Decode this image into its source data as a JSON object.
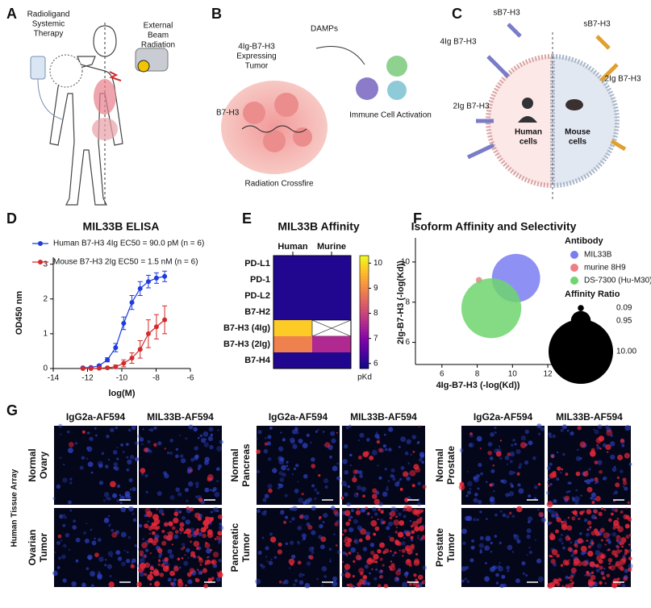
{
  "panel_letters": [
    "A",
    "B",
    "C",
    "D",
    "E",
    "F",
    "G"
  ],
  "panel_a": {
    "labels": [
      {
        "lines": [
          "Radioligand",
          "Systemic",
          "Therapy"
        ]
      },
      {
        "lines": [
          "External",
          "Beam",
          "Radiation"
        ]
      }
    ]
  },
  "panel_b": {
    "labels": [
      {
        "lines": [
          "4Ig-B7-H3",
          "Expressing",
          "Tumor"
        ]
      },
      {
        "lines": [
          "DAMPs"
        ]
      },
      {
        "lines": [
          "B7-H3"
        ]
      },
      {
        "lines": [
          "Immune Cell Activation"
        ]
      },
      {
        "lines": [
          "Radiation Crossfire"
        ]
      }
    ]
  },
  "panel_c": {
    "labels": [
      {
        "lines": [
          "sB7-H3"
        ]
      },
      {
        "lines": [
          "sB7-H3"
        ]
      },
      {
        "lines": [
          "4Ig B7-H3"
        ]
      },
      {
        "lines": [
          "2Ig B7-H3"
        ]
      },
      {
        "lines": [
          "2Ig B7-H3"
        ]
      },
      {
        "lines": [
          "Human",
          "cells"
        ]
      },
      {
        "lines": [
          "Mouse",
          "cells"
        ]
      }
    ]
  },
  "chart_data": [
    {
      "type": "line",
      "title": "MIL33B ELISA",
      "x_label": "log(M)",
      "y_label": "OD450 nm",
      "x": [
        -12.27,
        -11.8,
        -11.32,
        -10.84,
        -10.36,
        -9.89,
        -9.41,
        -8.93,
        -8.45,
        -7.98,
        -7.5
      ],
      "series": [
        {
          "name": "Human B7-H3 4Ig EC50 = 90.0 pM (n = 6)",
          "color": "#1f3be0",
          "values": [
            0.02,
            0.03,
            0.08,
            0.25,
            0.6,
            1.3,
            1.9,
            2.3,
            2.5,
            2.6,
            2.65
          ],
          "errors": [
            0.02,
            0.02,
            0.03,
            0.06,
            0.12,
            0.18,
            0.2,
            0.2,
            0.18,
            0.15,
            0.15
          ]
        },
        {
          "name": "Mouse B7-H3 2Ig EC50 = 1.5 nM (n = 6)",
          "color": "#d42a2a",
          "values": [
            0,
            0,
            0.01,
            0.02,
            0.05,
            0.15,
            0.3,
            0.55,
            1.0,
            1.2,
            1.4
          ],
          "errors": [
            0.01,
            0.01,
            0.01,
            0.02,
            0.05,
            0.1,
            0.15,
            0.25,
            0.4,
            0.35,
            0.4
          ]
        }
      ],
      "xlim": [
        -14,
        -6
      ],
      "xticks": [
        -14,
        -12,
        -10,
        -8,
        -6
      ],
      "ylim": [
        0,
        3.2
      ],
      "yticks": [
        0,
        1,
        2,
        3
      ]
    },
    {
      "type": "heatmap",
      "title": "MIL33B Affinity",
      "columns": [
        "Human",
        "Murine"
      ],
      "rows": [
        "PD-L1",
        "PD-1",
        "PD-L2",
        "B7-H2",
        "B7-H3 (4Ig)",
        "B7-H3 (2Ig)",
        "B7-H4"
      ],
      "values": [
        [
          6,
          6
        ],
        [
          6,
          6
        ],
        [
          6,
          6
        ],
        [
          6,
          6
        ],
        [
          9.8,
          null
        ],
        [
          8.9,
          7.6
        ],
        [
          6,
          6
        ]
      ],
      "zlim": [
        5.8,
        10.3
      ],
      "zticks": [
        6,
        7,
        8,
        9,
        10
      ],
      "colorbar_label": "pKd",
      "colormap": "plasma"
    },
    {
      "type": "bubble",
      "title": "Isoform Affinity and Selectivity",
      "x_label": "4Ig-B7-H3 (-log(Kd))",
      "y_label": "2Ig-B7-H3 (-log(Kd))",
      "legend_title": "Antibody",
      "size_legend_title": "Affinity Ratio",
      "series": [
        {
          "name": "MIL33B",
          "color": "#7b7cf2",
          "x": [
            10.2
          ],
          "y": [
            9.2
          ],
          "size": [
            5.6
          ]
        },
        {
          "name": "murine 8H9",
          "color": "#ef7f86",
          "x": [
            8.1
          ],
          "y": [
            9.1
          ],
          "size": [
            0.09
          ]
        },
        {
          "name": "DS-7300 (Hu-M30)",
          "color": "#6fd56f",
          "x": [
            8.8
          ],
          "y": [
            7.7
          ],
          "size": [
            8.6
          ]
        }
      ],
      "size_legend": {
        "values": [
          0.09,
          0.95,
          10
        ],
        "value_labels": [
          "0.09",
          "0.95",
          "10.00"
        ]
      },
      "xlim": [
        4.5,
        12.5
      ],
      "xticks": [
        6,
        8,
        10,
        12
      ],
      "ylim": [
        4.9,
        11.2
      ],
      "yticks": [
        6,
        8,
        10
      ]
    }
  ],
  "panel_g": {
    "columns": [
      "IgG2a-AF594",
      "MIL33B-AF594"
    ],
    "side_label": "Human Tissue Array",
    "groups": [
      {
        "rows": [
          [
            "Normal",
            "Ovary"
          ],
          [
            "Ovarian",
            "Tumor"
          ]
        ]
      },
      {
        "rows": [
          [
            "Normal",
            "Pancreas"
          ],
          [
            "Pancreatic",
            "Tumor"
          ]
        ]
      },
      {
        "rows": [
          [
            "Normal",
            "Prostate"
          ],
          [
            "Prostate",
            "Tumor"
          ]
        ]
      }
    ]
  }
}
